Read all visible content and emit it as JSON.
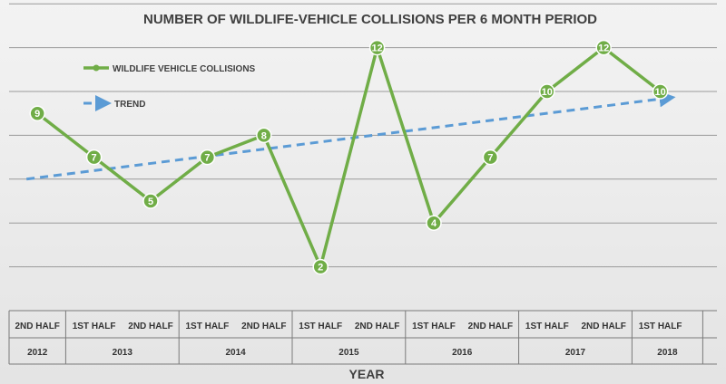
{
  "chart_data": {
    "type": "line",
    "title": "NUMBER OF WILDLIFE-VEHICLE COLLISIONS PER 6 MONTH PERIOD",
    "xlabel": "YEAR",
    "ylabel": "",
    "ylim": [
      0,
      14
    ],
    "grid": true,
    "legend_position": "top-left",
    "categories": [
      {
        "half": "2ND HALF",
        "year": "2012"
      },
      {
        "half": "1ST HALF",
        "year": "2013"
      },
      {
        "half": "2ND HALF",
        "year": "2013"
      },
      {
        "half": "1ST HALF",
        "year": "2014"
      },
      {
        "half": "2ND HALF",
        "year": "2014"
      },
      {
        "half": "1ST HALF",
        "year": "2015"
      },
      {
        "half": "2ND HALF",
        "year": "2015"
      },
      {
        "half": "1ST HALF",
        "year": "2016"
      },
      {
        "half": "2ND HALF",
        "year": "2016"
      },
      {
        "half": "1ST HALF",
        "year": "2017"
      },
      {
        "half": "2ND HALF",
        "year": "2017"
      },
      {
        "half": "1ST HALF",
        "year": "2018"
      }
    ],
    "years": [
      "2012",
      "2013",
      "2014",
      "2015",
      "2016",
      "2017",
      "2018"
    ],
    "series": [
      {
        "name": "WILDLIFE VEHICLE COLLISIONS",
        "values": [
          9,
          7,
          5,
          7,
          8,
          2,
          12,
          4,
          7,
          10,
          12,
          10
        ],
        "color": "#70ad47",
        "style": "solid-with-markers"
      },
      {
        "name": "TREND",
        "trend_start": 6.0,
        "trend_end": 9.7,
        "color": "#5b9bd5",
        "style": "dashed-arrow"
      }
    ]
  }
}
